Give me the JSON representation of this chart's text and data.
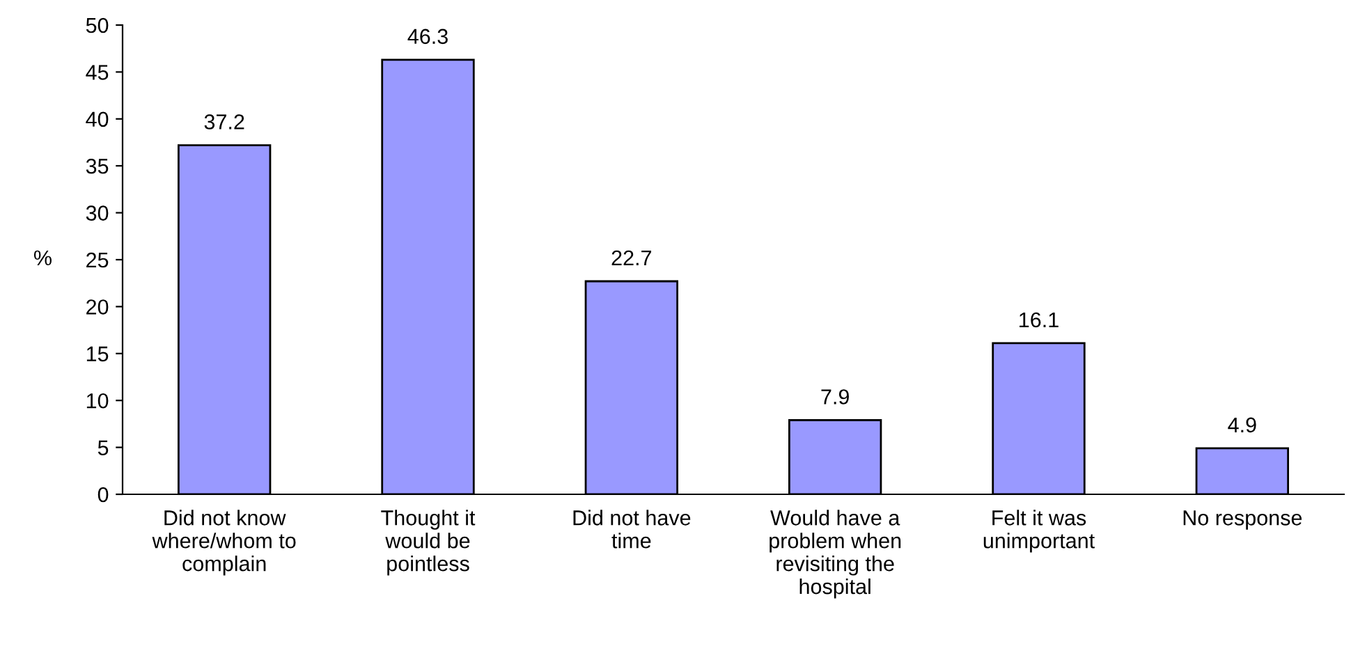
{
  "chart_data": {
    "type": "bar",
    "ylabel": "%",
    "categories": [
      "Did not know\nwhere/whom to\ncomplain",
      "Thought it\nwould be\npointless",
      "Did not have\ntime",
      "Would have a\nproblem when\nrevisiting the\nhospital",
      "Felt it was\nunimportant",
      "No response"
    ],
    "values": [
      37.2,
      46.3,
      22.7,
      7.9,
      16.1,
      4.9
    ],
    "color": "#9999ff",
    "ylim": [
      0,
      50
    ],
    "yticks": [
      0,
      5,
      10,
      15,
      20,
      25,
      30,
      35,
      40,
      45,
      50
    ],
    "data_labels": true,
    "grid": false,
    "legend": false
  }
}
